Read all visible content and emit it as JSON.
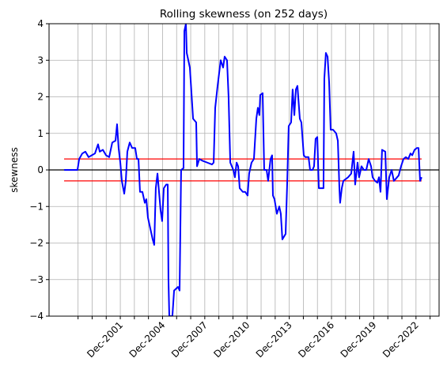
{
  "chart_data": {
    "type": "line",
    "title": "Rolling skewness (on 252 days)",
    "ylabel": "skewness",
    "x": [
      1997.93,
      1998.88,
      1999.0,
      1999.22,
      1999.44,
      1999.67,
      1999.89,
      2000.12,
      2000.34,
      2000.46,
      2000.68,
      2000.91,
      2001.13,
      2001.35,
      2001.58,
      2001.69,
      2001.8,
      2001.92,
      2002.03,
      2002.2,
      2002.31,
      2002.42,
      2002.59,
      2002.76,
      2002.98,
      2003.1,
      2003.21,
      2003.32,
      2003.49,
      2003.66,
      2003.77,
      2003.88,
      2004.05,
      2004.22,
      2004.33,
      2004.44,
      2004.56,
      2004.67,
      2004.78,
      2004.89,
      2005.01,
      2005.18,
      2005.29,
      2005.34,
      2005.4,
      2005.62,
      2005.74,
      2006.02,
      2006.13,
      2006.24,
      2006.41,
      2006.47,
      2006.58,
      2006.64,
      2006.86,
      2007.09,
      2007.31,
      2007.37,
      2007.53,
      2007.76,
      2008.1,
      2008.43,
      2008.55,
      2008.66,
      2008.83,
      2009.05,
      2009.22,
      2009.33,
      2009.5,
      2009.61,
      2009.73,
      2009.95,
      2010.06,
      2010.18,
      2010.29,
      2010.4,
      2010.62,
      2010.79,
      2010.96,
      2011.07,
      2011.24,
      2011.41,
      2011.58,
      2011.69,
      2011.8,
      2011.86,
      2012.03,
      2012.14,
      2012.31,
      2012.42,
      2012.59,
      2012.7,
      2012.76,
      2012.87,
      2013.04,
      2013.21,
      2013.32,
      2013.43,
      2013.66,
      2013.77,
      2013.88,
      2014.05,
      2014.16,
      2014.28,
      2014.39,
      2014.5,
      2014.67,
      2014.78,
      2014.95,
      2015.06,
      2015.29,
      2015.4,
      2015.57,
      2015.68,
      2015.79,
      2015.91,
      2016.02,
      2016.19,
      2016.35,
      2016.41,
      2016.52,
      2016.64,
      2016.75,
      2016.86,
      2017.03,
      2017.25,
      2017.37,
      2017.48,
      2017.53,
      2017.65,
      2017.76,
      2017.93,
      2018.1,
      2018.32,
      2018.49,
      2018.6,
      2018.77,
      2018.88,
      2019.05,
      2019.22,
      2019.39,
      2019.56,
      2019.73,
      2019.84,
      2020.01,
      2020.18,
      2020.29,
      2020.4,
      2020.51,
      2020.74,
      2020.85,
      2021.02,
      2021.19,
      2021.35,
      2021.47,
      2021.69,
      2021.86,
      2022.03,
      2022.2,
      2022.37,
      2022.53,
      2022.65,
      2022.82,
      2022.98,
      2023.1,
      2023.21,
      2023.32
    ],
    "series": [
      {
        "color": "#0000ff",
        "values": [
          0,
          0,
          0.3,
          0.45,
          0.5,
          0.35,
          0.4,
          0.45,
          0.7,
          0.5,
          0.55,
          0.4,
          0.35,
          0.75,
          0.8,
          1.25,
          0.6,
          0.2,
          -0.3,
          -0.65,
          -0.3,
          0.5,
          0.75,
          0.6,
          0.6,
          0.3,
          0.3,
          -0.6,
          -0.6,
          -0.9,
          -0.8,
          -1.3,
          -1.6,
          -1.9,
          -2.05,
          -0.5,
          -0.1,
          -0.6,
          -1.1,
          -1.4,
          -0.5,
          -0.4,
          -0.4,
          -3.0,
          -4.0,
          -4.0,
          -3.3,
          -3.2,
          -3.3,
          0.0,
          0.05,
          3.8,
          4.0,
          3.2,
          2.8,
          1.4,
          1.3,
          0.1,
          0.3,
          0.25,
          0.2,
          0.15,
          0.2,
          1.7,
          2.3,
          3.0,
          2.8,
          3.1,
          3.0,
          2.0,
          0.2,
          0.0,
          -0.2,
          0.2,
          0.1,
          -0.5,
          -0.6,
          -0.6,
          -0.7,
          -0.1,
          0.2,
          0.3,
          1.4,
          1.7,
          1.5,
          2.05,
          2.1,
          0.0,
          0.0,
          -0.3,
          0.3,
          0.4,
          -0.7,
          -0.8,
          -1.2,
          -1.0,
          -1.2,
          -1.9,
          -1.75,
          -0.4,
          1.2,
          1.3,
          2.2,
          1.5,
          2.2,
          2.3,
          1.4,
          1.3,
          0.4,
          0.35,
          0.35,
          0.0,
          0.0,
          0.1,
          0.85,
          0.9,
          -0.5,
          -0.5,
          -0.5,
          2.5,
          3.2,
          3.1,
          2.4,
          1.1,
          1.1,
          1.0,
          0.8,
          -0.5,
          -0.9,
          -0.5,
          -0.3,
          -0.25,
          -0.2,
          -0.1,
          0.5,
          -0.4,
          0.2,
          -0.2,
          0.1,
          0.0,
          0.0,
          0.3,
          0.1,
          -0.2,
          -0.3,
          -0.35,
          -0.2,
          -0.6,
          0.55,
          0.5,
          -0.8,
          -0.2,
          0.0,
          -0.3,
          -0.25,
          -0.15,
          0.1,
          0.3,
          0.35,
          0.3,
          0.45,
          0.4,
          0.55,
          0.6,
          0.6,
          -0.3,
          -0.2
        ]
      }
    ],
    "hlines": [
      {
        "value": 0,
        "color": "#000000"
      },
      {
        "value": 0.3,
        "xmin": 1997.93,
        "xmax": 2023.32,
        "color": "#ff0000"
      },
      {
        "value": -0.3,
        "xmin": 1997.93,
        "xmax": 2023.32,
        "color": "#ff0000"
      }
    ],
    "xlim": [
      1996.86,
      2024.56
    ],
    "ylim": [
      -4,
      4
    ],
    "xticks": [
      {
        "value": 2001.92,
        "label": "Dec-2001"
      },
      {
        "value": 2004.92,
        "label": "Dec-2004"
      },
      {
        "value": 2007.92,
        "label": "Dec-2007"
      },
      {
        "value": 2010.92,
        "label": "Dec-2010"
      },
      {
        "value": 2013.92,
        "label": "Dec-2013"
      },
      {
        "value": 2016.92,
        "label": "Dec-2016"
      },
      {
        "value": 2019.92,
        "label": "Dec-2019"
      },
      {
        "value": 2022.92,
        "label": "Dec-2022"
      }
    ],
    "xminorticks": [
      1998.92,
      1999.92,
      2000.92,
      2002.92,
      2003.92,
      2005.92,
      2006.92,
      2008.92,
      2009.92,
      2011.92,
      2012.92,
      2014.92,
      2015.92,
      2017.92,
      2018.92,
      2020.92,
      2021.92,
      2023.92
    ],
    "yticks": [
      {
        "value": -4,
        "label": "−4"
      },
      {
        "value": -3,
        "label": "−3"
      },
      {
        "value": -2,
        "label": "−2"
      },
      {
        "value": -1,
        "label": "−1"
      },
      0,
      1,
      2,
      3,
      4
    ],
    "grid": true
  }
}
